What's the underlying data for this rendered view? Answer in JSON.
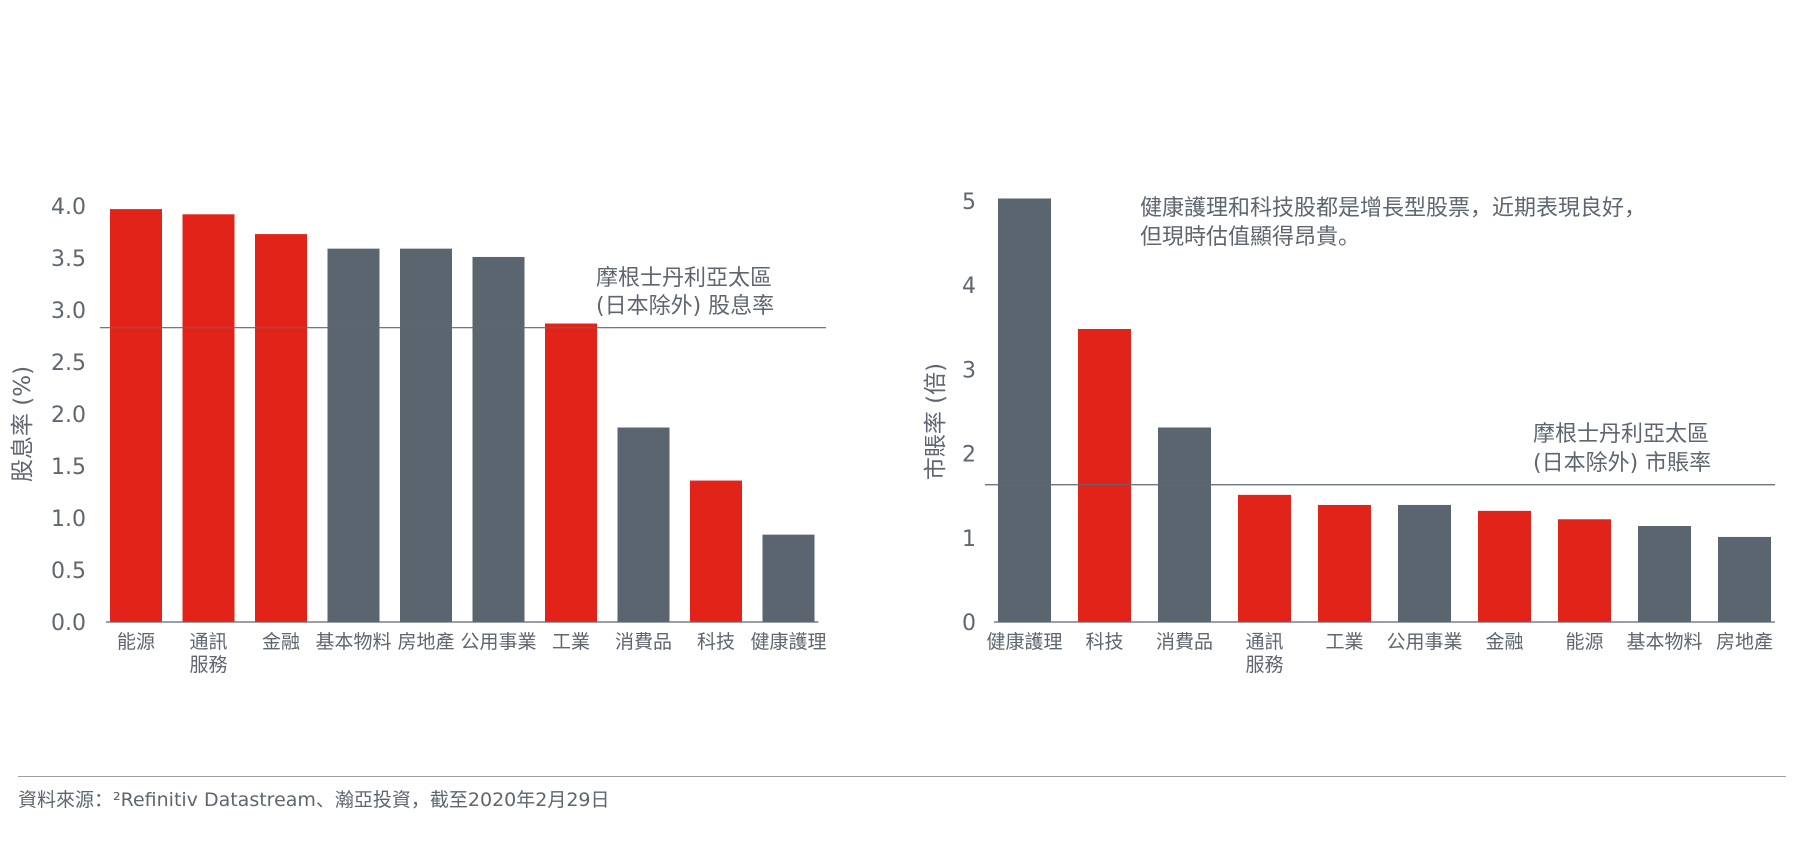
{
  "colors": {
    "red": "#e2231a",
    "gray": "#5b6570",
    "text": "#5f6670",
    "line": "#5f6670"
  },
  "chart_data": [
    {
      "type": "bar",
      "ylabel": "股息率 (%)",
      "ylim": [
        0,
        4.0
      ],
      "yticks": [
        "0.0",
        "0.5",
        "1.0",
        "1.5",
        "2.0",
        "2.5",
        "3.0",
        "3.5",
        "4.0"
      ],
      "categories": [
        [
          "能源"
        ],
        [
          "通訊",
          "服務"
        ],
        [
          "金融"
        ],
        [
          "基本物料"
        ],
        [
          "房地產"
        ],
        [
          "公用事業"
        ],
        [
          "工業"
        ],
        [
          "消費品"
        ],
        [
          "科技"
        ],
        [
          "健康護理"
        ]
      ],
      "values": [
        3.97,
        3.92,
        3.73,
        3.59,
        3.59,
        3.51,
        2.87,
        1.87,
        1.36,
        0.84
      ],
      "bar_colors": [
        "red",
        "red",
        "red",
        "gray",
        "gray",
        "gray",
        "red",
        "gray",
        "red",
        "gray"
      ],
      "reference": {
        "value": 2.83,
        "label": [
          "摩根士丹利亞太區",
          "(日本除外) 股息率"
        ]
      }
    },
    {
      "type": "bar",
      "ylabel": "市賬率 (倍)",
      "ylim": [
        0,
        5
      ],
      "yticks": [
        "0",
        "1",
        "2",
        "3",
        "4",
        "5"
      ],
      "categories": [
        [
          "健康護理"
        ],
        [
          "科技"
        ],
        [
          "消費品"
        ],
        [
          "通訊",
          "服務"
        ],
        [
          "工業"
        ],
        [
          "公用事業"
        ],
        [
          "金融"
        ],
        [
          "能源"
        ],
        [
          "基本物料"
        ],
        [
          "房地產"
        ]
      ],
      "values": [
        5.03,
        3.48,
        2.31,
        1.51,
        1.39,
        1.39,
        1.32,
        1.22,
        1.14,
        1.01
      ],
      "bar_colors": [
        "gray",
        "red",
        "gray",
        "red",
        "red",
        "gray",
        "red",
        "red",
        "gray",
        "gray"
      ],
      "reference": {
        "value": 1.63,
        "label": [
          "摩根士丹利亞太區",
          "(日本除外) 市賬率"
        ]
      },
      "annotation": [
        "健康護理和科技股都是增長型股票，近期表現良好，",
        "但現時估值顯得昂貴。"
      ]
    }
  ],
  "footer": {
    "source": "資料來源：²Refinitiv Datastream、瀚亞投資，截至2020年2月29日"
  }
}
